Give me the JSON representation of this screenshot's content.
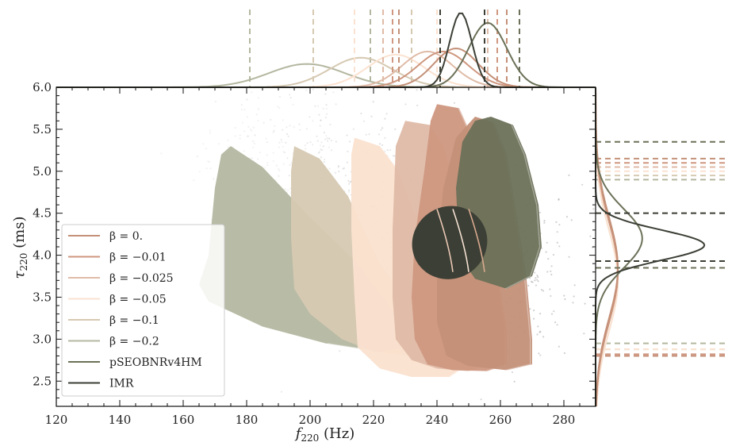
{
  "chart_data": {
    "type": "scatter",
    "xlabel_main": "f",
    "xlabel_sub": "220",
    "xlabel_unit": " (Hz)",
    "ylabel_main": "τ",
    "ylabel_sub": "220",
    "ylabel_unit": " (ms)",
    "xlim": [
      120,
      290
    ],
    "ylim": [
      2.2,
      6.0
    ],
    "xticks": [
      120,
      140,
      160,
      180,
      200,
      220,
      240,
      260,
      280
    ],
    "yticks": [
      2.5,
      3.0,
      3.5,
      4.0,
      4.5,
      5.0,
      5.5,
      6.0
    ],
    "xtick_labels": [
      "120",
      "140",
      "160",
      "180",
      "200",
      "220",
      "240",
      "260",
      "280"
    ],
    "ytick_labels": [
      "2.5",
      "3.0",
      "3.5",
      "4.0",
      "4.5",
      "5.0",
      "5.5",
      "6.0"
    ],
    "legend": {
      "placement": "lower-left",
      "entries": [
        "β = 0.",
        "β = −0.01",
        "β = −0.025",
        "β = −0.05",
        "β = −0.1",
        "β = −0.2",
        "pSEOBNRv4HM",
        "IMR"
      ]
    },
    "series": [
      {
        "name": "β = −0.2",
        "color": "#b4b7a0",
        "region": [
          [
            175,
            5.3
          ],
          [
            185,
            5.05
          ],
          [
            200,
            4.45
          ],
          [
            215,
            3.9
          ],
          [
            225,
            3.4
          ],
          [
            232,
            3.0
          ],
          [
            232,
            2.9
          ],
          [
            222,
            2.85
          ],
          [
            205,
            2.95
          ],
          [
            185,
            3.15
          ],
          [
            168,
            3.45
          ],
          [
            165,
            3.65
          ],
          [
            168,
            4.0
          ],
          [
            170,
            4.8
          ],
          [
            172,
            5.2
          ]
        ],
        "marginal_x_peak": 199,
        "marginal_x_sigma": 12,
        "marginal_y_peak": 3.8,
        "marginal_y_sigma": 0.6,
        "x_ci": [
          181,
          219
        ],
        "y_ci": [
          2.95,
          4.9
        ]
      },
      {
        "name": "β = −0.1",
        "color": "#d6c9b2",
        "region": [
          [
            195,
            5.3
          ],
          [
            203,
            5.15
          ],
          [
            212,
            4.7
          ],
          [
            222,
            3.9
          ],
          [
            230,
            3.5
          ],
          [
            238,
            3.25
          ],
          [
            243,
            3.0
          ],
          [
            243,
            2.85
          ],
          [
            232,
            2.8
          ],
          [
            220,
            2.85
          ],
          [
            210,
            3.0
          ],
          [
            200,
            3.3
          ],
          [
            195,
            3.6
          ],
          [
            194,
            4.2
          ],
          [
            194,
            5.0
          ]
        ],
        "marginal_x_peak": 216,
        "marginal_x_sigma": 10,
        "marginal_y_peak": 3.7,
        "marginal_y_sigma": 0.6,
        "x_ci": [
          201,
          232
        ],
        "y_ci": [
          2.88,
          4.95
        ]
      },
      {
        "name": "β = −0.05",
        "color": "#fbe2d0",
        "region": [
          [
            214,
            5.4
          ],
          [
            222,
            5.3
          ],
          [
            228,
            5.0
          ],
          [
            233,
            4.5
          ],
          [
            240,
            4.0
          ],
          [
            247,
            3.5
          ],
          [
            250,
            3.2
          ],
          [
            250,
            2.7
          ],
          [
            244,
            2.55
          ],
          [
            232,
            2.55
          ],
          [
            222,
            2.65
          ],
          [
            215,
            2.9
          ],
          [
            214,
            3.5
          ],
          [
            213,
            4.3
          ],
          [
            213,
            5.2
          ]
        ],
        "marginal_x_peak": 227,
        "marginal_x_sigma": 9,
        "marginal_y_peak": 3.7,
        "marginal_y_sigma": 0.6,
        "x_ci": [
          214,
          240
        ],
        "y_ci": [
          2.88,
          5.0
        ]
      },
      {
        "name": "β = −0.025",
        "color": "#dfbba7",
        "region": [
          [
            230,
            5.6
          ],
          [
            238,
            5.55
          ],
          [
            242,
            5.3
          ],
          [
            247,
            4.7
          ],
          [
            252,
            4.1
          ],
          [
            256,
            3.6
          ],
          [
            258,
            3.1
          ],
          [
            258,
            2.7
          ],
          [
            250,
            2.62
          ],
          [
            240,
            2.65
          ],
          [
            232,
            2.75
          ],
          [
            227,
            3.0
          ],
          [
            226,
            3.5
          ],
          [
            226,
            4.3
          ],
          [
            227,
            5.3
          ]
        ],
        "marginal_x_peak": 237,
        "marginal_x_sigma": 8,
        "marginal_y_peak": 3.8,
        "marginal_y_sigma": 0.6,
        "x_ci": [
          223,
          256
        ],
        "y_ci": [
          2.8,
          5.05
        ]
      },
      {
        "name": "β = −0.01",
        "color": "#cf977f",
        "region": [
          [
            240,
            5.8
          ],
          [
            247,
            5.75
          ],
          [
            250,
            5.5
          ],
          [
            253,
            4.9
          ],
          [
            256,
            4.2
          ],
          [
            260,
            3.6
          ],
          [
            262,
            3.1
          ],
          [
            262,
            2.7
          ],
          [
            256,
            2.62
          ],
          [
            245,
            2.63
          ],
          [
            237,
            2.7
          ],
          [
            233,
            3.0
          ],
          [
            232,
            3.5
          ],
          [
            233,
            4.2
          ],
          [
            236,
            5.0
          ],
          [
            238,
            5.6
          ]
        ],
        "marginal_x_peak": 242,
        "marginal_x_sigma": 8,
        "marginal_y_peak": 3.8,
        "marginal_y_sigma": 0.6,
        "x_ci": [
          226,
          259
        ],
        "y_ci": [
          2.82,
          5.1
        ]
      },
      {
        "name": "β = 0.",
        "color": "#c49078",
        "region": [
          [
            252,
            5.65
          ],
          [
            258,
            5.58
          ],
          [
            262,
            5.2
          ],
          [
            265,
            4.5
          ],
          [
            268,
            3.8
          ],
          [
            270,
            3.0
          ],
          [
            270,
            2.7
          ],
          [
            262,
            2.63
          ],
          [
            250,
            2.68
          ],
          [
            243,
            2.8
          ],
          [
            240,
            3.2
          ],
          [
            240,
            4.0
          ],
          [
            242,
            4.8
          ],
          [
            246,
            5.4
          ]
        ],
        "marginal_x_peak": 246,
        "marginal_x_sigma": 7,
        "marginal_y_peak": 3.85,
        "marginal_y_sigma": 0.6,
        "x_ci": [
          228,
          262
        ],
        "y_ci": [
          2.8,
          5.15
        ]
      },
      {
        "name": "pSEOBNRv4HM",
        "color": "#6b7158",
        "region": [
          [
            257,
            5.65
          ],
          [
            264,
            5.55
          ],
          [
            268,
            5.2
          ],
          [
            272,
            4.6
          ],
          [
            273,
            4.1
          ],
          [
            270,
            3.75
          ],
          [
            262,
            3.6
          ],
          [
            252,
            3.72
          ],
          [
            247,
            4.0
          ],
          [
            246,
            4.8
          ],
          [
            248,
            5.35
          ],
          [
            252,
            5.6
          ]
        ],
        "marginal_x_peak": 256,
        "marginal_x_sigma": 6,
        "marginal_y_peak": 4.2,
        "marginal_y_sigma": 0.35,
        "x_ci": [
          241,
          266
        ],
        "y_ci": [
          3.85,
          5.35
        ]
      },
      {
        "name": "IMR",
        "color": "#3b3f35",
        "ellipse": {
          "cx": 244,
          "cy": 4.15,
          "rx": 12,
          "ry": 0.43,
          "tilt": -30
        },
        "marginal_x_peak": 247.5,
        "marginal_x_sigma": 3.5,
        "marginal_y_peak": 4.12,
        "marginal_y_sigma": 0.18,
        "x_ci": [
          241,
          255
        ],
        "y_ci": [
          3.93,
          4.5
        ]
      }
    ]
  }
}
